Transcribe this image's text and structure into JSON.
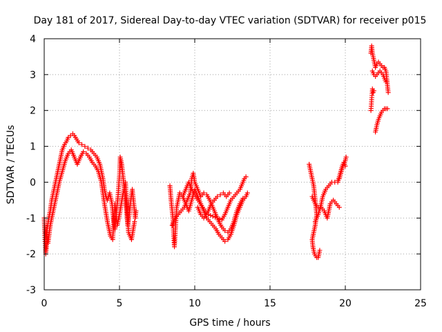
{
  "chart_data": {
    "type": "scatter",
    "title": "Day 181 of 2017, Sidereal Day-to-day VTEC variation (SDTVAR) for receiver p015",
    "xlabel": "GPS time / hours",
    "ylabel": "SDTVAR / TECUs",
    "xlim": [
      0,
      25
    ],
    "ylim": [
      -3,
      4
    ],
    "xticks": [
      0,
      5,
      10,
      15,
      20,
      25
    ],
    "yticks": [
      -3,
      -2,
      -1,
      0,
      1,
      2,
      3,
      4
    ],
    "xtick_labels": [
      "0",
      "5",
      "10",
      "15",
      "20",
      "25"
    ],
    "ytick_labels": [
      "-3",
      "-2",
      "-1",
      "0",
      "1",
      "2",
      "3",
      "4"
    ],
    "grid": true,
    "marker": "+",
    "color": "#ff0000",
    "series": [
      {
        "name": "SDTVAR",
        "segments": [
          [
            [
              0.0,
              -1.0
            ],
            [
              0.05,
              -1.6
            ],
            [
              0.1,
              -2.0
            ],
            [
              0.15,
              -1.8
            ],
            [
              0.2,
              -1.3
            ],
            [
              0.3,
              -1.0
            ],
            [
              0.4,
              -0.8
            ],
            [
              0.5,
              -0.5
            ],
            [
              0.6,
              -0.3
            ],
            [
              0.7,
              -0.1
            ],
            [
              0.8,
              0.1
            ],
            [
              0.9,
              0.3
            ],
            [
              1.0,
              0.5
            ],
            [
              1.1,
              0.7
            ],
            [
              1.2,
              0.9
            ],
            [
              1.35,
              1.05
            ],
            [
              1.5,
              1.15
            ],
            [
              1.6,
              1.25
            ],
            [
              1.75,
              1.3
            ],
            [
              1.9,
              1.35
            ],
            [
              2.0,
              1.3
            ],
            [
              2.15,
              1.2
            ],
            [
              2.3,
              1.1
            ],
            [
              2.5,
              1.05
            ],
            [
              2.7,
              1.0
            ],
            [
              2.9,
              0.95
            ],
            [
              3.1,
              0.9
            ],
            [
              3.3,
              0.8
            ],
            [
              3.5,
              0.7
            ],
            [
              3.7,
              0.5
            ],
            [
              3.8,
              0.3
            ],
            [
              3.9,
              0.1
            ],
            [
              4.0,
              -0.2
            ],
            [
              4.1,
              -0.4
            ],
            [
              4.2,
              -0.5
            ],
            [
              4.35,
              -0.3
            ],
            [
              4.5,
              -0.6
            ],
            [
              4.6,
              -1.0
            ],
            [
              4.7,
              -1.3
            ],
            [
              4.8,
              -0.8
            ],
            [
              4.9,
              -0.4
            ],
            [
              5.0,
              0.2
            ],
            [
              5.05,
              0.7
            ],
            [
              5.15,
              0.5
            ],
            [
              5.25,
              0.1
            ],
            [
              5.35,
              -0.3
            ],
            [
              5.45,
              -0.7
            ],
            [
              5.55,
              -1.2
            ],
            [
              5.65,
              -0.9
            ],
            [
              5.75,
              -0.5
            ],
            [
              5.85,
              -0.2
            ],
            [
              5.95,
              -0.6
            ],
            [
              6.05,
              -1.0
            ],
            [
              6.1,
              -0.8
            ]
          ],
          [
            [
              0.1,
              -1.4
            ],
            [
              0.25,
              -1.7
            ],
            [
              0.4,
              -1.2
            ],
            [
              0.55,
              -0.9
            ],
            [
              0.7,
              -0.6
            ],
            [
              0.85,
              -0.3
            ],
            [
              1.0,
              0.0
            ],
            [
              1.2,
              0.3
            ],
            [
              1.4,
              0.6
            ],
            [
              1.6,
              0.8
            ],
            [
              1.8,
              0.9
            ],
            [
              2.0,
              0.7
            ],
            [
              2.2,
              0.5
            ],
            [
              2.4,
              0.7
            ],
            [
              2.6,
              0.85
            ],
            [
              2.8,
              0.8
            ],
            [
              3.0,
              0.7
            ],
            [
              3.2,
              0.55
            ],
            [
              3.4,
              0.45
            ],
            [
              3.6,
              0.3
            ],
            [
              3.8,
              0.0
            ],
            [
              4.0,
              -0.6
            ],
            [
              4.2,
              -1.1
            ],
            [
              4.4,
              -1.5
            ],
            [
              4.55,
              -1.6
            ],
            [
              4.7,
              -0.6
            ],
            [
              4.85,
              -1.2
            ],
            [
              5.0,
              -0.9
            ],
            [
              5.2,
              -0.4
            ],
            [
              5.4,
              0.0
            ],
            [
              5.6,
              -1.4
            ],
            [
              5.8,
              -1.6
            ],
            [
              6.0,
              -1.1
            ]
          ],
          [
            [
              8.35,
              -0.1
            ],
            [
              8.45,
              -0.6
            ],
            [
              8.55,
              -1.0
            ],
            [
              8.6,
              -1.5
            ],
            [
              8.65,
              -1.8
            ],
            [
              8.8,
              -0.7
            ],
            [
              9.0,
              -0.3
            ],
            [
              9.2,
              -0.4
            ],
            [
              9.4,
              -0.6
            ],
            [
              9.6,
              -0.8
            ],
            [
              9.8,
              -0.5
            ],
            [
              10.0,
              -0.2
            ],
            [
              10.2,
              -0.4
            ],
            [
              10.4,
              -0.6
            ],
            [
              10.6,
              -0.8
            ],
            [
              10.8,
              -1.0
            ],
            [
              11.0,
              -1.1
            ],
            [
              11.2,
              -1.2
            ],
            [
              11.4,
              -1.3
            ],
            [
              11.6,
              -1.45
            ],
            [
              11.8,
              -1.55
            ],
            [
              12.0,
              -1.65
            ],
            [
              12.2,
              -1.6
            ],
            [
              12.4,
              -1.45
            ],
            [
              12.6,
              -1.2
            ],
            [
              12.8,
              -0.9
            ],
            [
              13.0,
              -0.7
            ],
            [
              13.2,
              -0.5
            ],
            [
              13.4,
              -0.4
            ],
            [
              13.5,
              -0.3
            ]
          ],
          [
            [
              8.5,
              -1.2
            ],
            [
              8.7,
              -1.0
            ],
            [
              8.9,
              -0.9
            ],
            [
              9.1,
              -0.8
            ],
            [
              9.3,
              -0.7
            ],
            [
              9.5,
              -0.5
            ],
            [
              9.7,
              -0.3
            ],
            [
              9.8,
              0.1
            ],
            [
              9.9,
              0.25
            ],
            [
              10.0,
              0.0
            ],
            [
              10.2,
              -0.2
            ],
            [
              10.4,
              -0.4
            ],
            [
              10.6,
              -0.3
            ],
            [
              10.8,
              -0.35
            ],
            [
              11.0,
              -0.5
            ],
            [
              11.2,
              -0.7
            ],
            [
              11.4,
              -0.9
            ],
            [
              11.6,
              -1.1
            ],
            [
              11.8,
              -1.25
            ],
            [
              12.0,
              -1.35
            ],
            [
              12.2,
              -1.4
            ],
            [
              12.4,
              -1.3
            ],
            [
              12.6,
              -1.1
            ],
            [
              12.8,
              -0.8
            ],
            [
              13.0,
              -0.6
            ],
            [
              13.2,
              -0.45
            ]
          ],
          [
            [
              9.2,
              -0.4
            ],
            [
              9.4,
              -0.2
            ],
            [
              9.6,
              0.0
            ],
            [
              9.8,
              -0.2
            ],
            [
              10.0,
              -0.35
            ],
            [
              10.3,
              -0.55
            ],
            [
              10.6,
              -0.75
            ],
            [
              10.9,
              -0.9
            ],
            [
              11.2,
              -0.95
            ],
            [
              11.5,
              -1.0
            ],
            [
              11.8,
              -1.05
            ],
            [
              12.0,
              -0.9
            ],
            [
              12.2,
              -0.7
            ],
            [
              12.4,
              -0.5
            ],
            [
              12.6,
              -0.4
            ],
            [
              12.8,
              -0.3
            ],
            [
              13.0,
              -0.2
            ],
            [
              13.3,
              0.1
            ],
            [
              13.4,
              0.15
            ]
          ],
          [
            [
              10.2,
              -0.7
            ],
            [
              10.4,
              -0.9
            ],
            [
              10.6,
              -1.0
            ],
            [
              10.9,
              -0.8
            ],
            [
              11.1,
              -0.6
            ],
            [
              11.3,
              -0.5
            ],
            [
              11.5,
              -0.4
            ],
            [
              11.7,
              -0.35
            ],
            [
              11.9,
              -0.3
            ],
            [
              12.1,
              -0.4
            ],
            [
              12.3,
              -0.3
            ]
          ],
          [
            [
              17.6,
              0.5
            ],
            [
              17.7,
              0.3
            ],
            [
              17.8,
              0.1
            ],
            [
              17.9,
              -0.1
            ],
            [
              18.0,
              -0.5
            ],
            [
              18.1,
              -0.9
            ],
            [
              18.0,
              -1.2
            ],
            [
              17.9,
              -1.4
            ],
            [
              17.8,
              -1.6
            ],
            [
              17.85,
              -1.8
            ],
            [
              17.95,
              -2.0
            ],
            [
              18.1,
              -2.1
            ],
            [
              18.2,
              -2.1
            ],
            [
              18.3,
              -1.9
            ]
          ],
          [
            [
              17.8,
              -0.4
            ],
            [
              18.0,
              -0.6
            ],
            [
              18.2,
              -0.7
            ],
            [
              18.4,
              -0.7
            ],
            [
              18.6,
              -0.8
            ],
            [
              18.8,
              -1.0
            ],
            [
              19.0,
              -0.6
            ],
            [
              19.2,
              -0.5
            ],
            [
              19.4,
              -0.6
            ],
            [
              19.6,
              -0.7
            ]
          ],
          [
            [
              18.0,
              -1.1
            ],
            [
              18.2,
              -0.9
            ],
            [
              18.4,
              -0.6
            ],
            [
              18.5,
              -0.4
            ],
            [
              18.7,
              -0.2
            ],
            [
              18.9,
              -0.1
            ],
            [
              19.1,
              0.0
            ],
            [
              19.3,
              0.0
            ],
            [
              19.5,
              0.05
            ],
            [
              19.6,
              0.1
            ],
            [
              19.7,
              0.25
            ],
            [
              19.8,
              0.4
            ],
            [
              19.9,
              0.5
            ],
            [
              20.0,
              0.6
            ],
            [
              20.05,
              0.7
            ]
          ],
          [
            [
              19.5,
              0.0
            ],
            [
              19.6,
              0.15
            ],
            [
              19.7,
              0.3
            ],
            [
              19.8,
              0.45
            ],
            [
              19.9,
              0.55
            ],
            [
              20.0,
              0.45
            ]
          ],
          [
            [
              21.7,
              3.6
            ],
            [
              21.75,
              3.8
            ],
            [
              21.8,
              3.6
            ],
            [
              21.85,
              3.5
            ],
            [
              21.9,
              3.4
            ],
            [
              21.95,
              3.3
            ],
            [
              22.0,
              3.2
            ],
            [
              22.1,
              3.3
            ],
            [
              22.2,
              3.35
            ],
            [
              22.3,
              3.3
            ],
            [
              22.4,
              3.25
            ],
            [
              22.5,
              3.2
            ],
            [
              22.6,
              3.2
            ],
            [
              22.7,
              3.1
            ],
            [
              22.75,
              2.9
            ],
            [
              22.8,
              2.7
            ],
            [
              22.85,
              2.5
            ]
          ],
          [
            [
              21.8,
              3.1
            ],
            [
              21.9,
              3.0
            ],
            [
              22.0,
              2.95
            ],
            [
              22.1,
              3.0
            ],
            [
              22.2,
              3.05
            ],
            [
              22.3,
              3.1
            ],
            [
              22.4,
              3.05
            ],
            [
              22.5,
              3.0
            ],
            [
              22.6,
              2.9
            ],
            [
              22.7,
              2.8
            ]
          ],
          [
            [
              21.7,
              2.0
            ],
            [
              21.75,
              2.3
            ],
            [
              21.8,
              2.6
            ],
            [
              21.85,
              2.5
            ],
            [
              21.9,
              2.55
            ]
          ],
          [
            [
              22.0,
              1.4
            ],
            [
              22.1,
              1.6
            ],
            [
              22.2,
              1.75
            ],
            [
              22.3,
              1.85
            ],
            [
              22.4,
              1.95
            ],
            [
              22.5,
              2.0
            ],
            [
              22.6,
              2.05
            ],
            [
              22.7,
              2.05
            ],
            [
              22.8,
              2.05
            ]
          ]
        ]
      }
    ]
  }
}
